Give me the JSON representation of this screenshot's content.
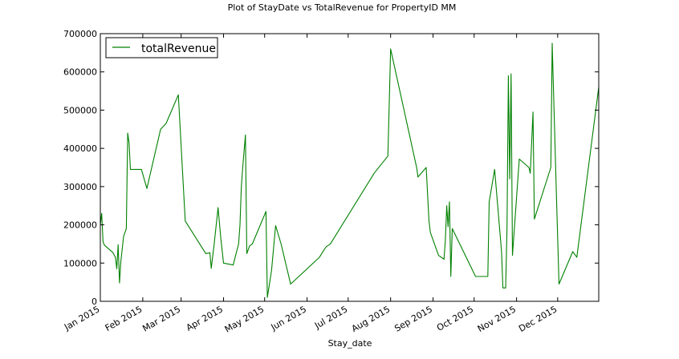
{
  "chart_data": {
    "type": "line",
    "title": "Plot of StayDate vs TotalRevenue for PropertyID MM",
    "xlabel": "Stay_date",
    "ylabel": "",
    "ylim": [
      0,
      700000
    ],
    "xlim": [
      "2015-01-01",
      "2015-12-31"
    ],
    "y_ticks": [
      0,
      100000,
      200000,
      300000,
      400000,
      500000,
      600000,
      700000
    ],
    "y_tick_labels": [
      "0",
      "100000",
      "200000",
      "300000",
      "400000",
      "500000",
      "600000",
      "700000"
    ],
    "x_ticks": [
      "2015-01-01",
      "2015-02-01",
      "2015-03-01",
      "2015-04-01",
      "2015-05-01",
      "2015-06-01",
      "2015-07-01",
      "2015-08-01",
      "2015-09-01",
      "2015-10-01",
      "2015-11-01",
      "2015-12-01"
    ],
    "x_tick_labels": [
      "Jan 2015",
      "Feb 2015",
      "Mar 2015",
      "Apr 2015",
      "May 2015",
      "Jun 2015",
      "Jul 2015",
      "Aug 2015",
      "Sep 2015",
      "Oct 2015",
      "Nov 2015",
      "Dec 2015"
    ],
    "grid": false,
    "legend_position": "top-left",
    "color": "#008000",
    "series": [
      {
        "name": "totalRevenue",
        "x": [
          "2015-01-01",
          "2015-01-02",
          "2015-01-03",
          "2015-01-04",
          "2015-01-10",
          "2015-01-12",
          "2015-01-13",
          "2015-01-14",
          "2015-01-15",
          "2015-01-16",
          "2015-01-18",
          "2015-01-20",
          "2015-01-21",
          "2015-01-22",
          "2015-01-23",
          "2015-01-24",
          "2015-01-31",
          "2015-02-04",
          "2015-02-14",
          "2015-02-18",
          "2015-02-27",
          "2015-03-04",
          "2015-03-19",
          "2015-03-22",
          "2015-03-23",
          "2015-03-25",
          "2015-03-28",
          "2015-03-30",
          "2015-04-01",
          "2015-04-08",
          "2015-04-12",
          "2015-04-13",
          "2015-04-14",
          "2015-04-15",
          "2015-04-17",
          "2015-04-18",
          "2015-04-20",
          "2015-04-22",
          "2015-05-02",
          "2015-05-03",
          "2015-05-06",
          "2015-05-09",
          "2015-05-13",
          "2015-05-20",
          "2015-06-10",
          "2015-06-14",
          "2015-06-15",
          "2015-06-18",
          "2015-07-20",
          "2015-07-30",
          "2015-08-01",
          "2015-08-20",
          "2015-08-21",
          "2015-08-27",
          "2015-08-29",
          "2015-08-30",
          "2015-09-05",
          "2015-09-09",
          "2015-09-10",
          "2015-09-11",
          "2015-09-12",
          "2015-09-13",
          "2015-09-14",
          "2015-09-15",
          "2015-10-02",
          "2015-10-11",
          "2015-10-12",
          "2015-10-16",
          "2015-10-21",
          "2015-10-22",
          "2015-10-23",
          "2015-10-24",
          "2015-10-25",
          "2015-10-26",
          "2015-10-27",
          "2015-10-28",
          "2015-10-29",
          "2015-11-03",
          "2015-11-10",
          "2015-11-11",
          "2015-11-13",
          "2015-11-14",
          "2015-11-26",
          "2015-11-27",
          "2015-11-30",
          "2015-12-02",
          "2015-12-12",
          "2015-12-15",
          "2015-12-31"
        ],
        "values": [
          200000,
          230000,
          155000,
          147000,
          128000,
          115000,
          85000,
          148000,
          48000,
          105000,
          170000,
          190000,
          440000,
          415000,
          345000,
          345000,
          345000,
          295000,
          450000,
          465000,
          540000,
          210000,
          125000,
          127000,
          86000,
          145000,
          245000,
          165000,
          100000,
          95000,
          150000,
          200000,
          300000,
          350000,
          435000,
          125000,
          145000,
          150000,
          235000,
          10000,
          80000,
          198000,
          150000,
          45000,
          115000,
          138000,
          143000,
          150000,
          335000,
          380000,
          660000,
          350000,
          325000,
          350000,
          210000,
          180000,
          120000,
          110000,
          160000,
          250000,
          195000,
          260000,
          65000,
          190000,
          65000,
          65000,
          260000,
          345000,
          130000,
          35000,
          35000,
          35000,
          190000,
          590000,
          320000,
          595000,
          120000,
          372000,
          350000,
          335000,
          495000,
          215000,
          350000,
          675000,
          290000,
          45000,
          130000,
          115000,
          560000
        ]
      }
    ]
  }
}
